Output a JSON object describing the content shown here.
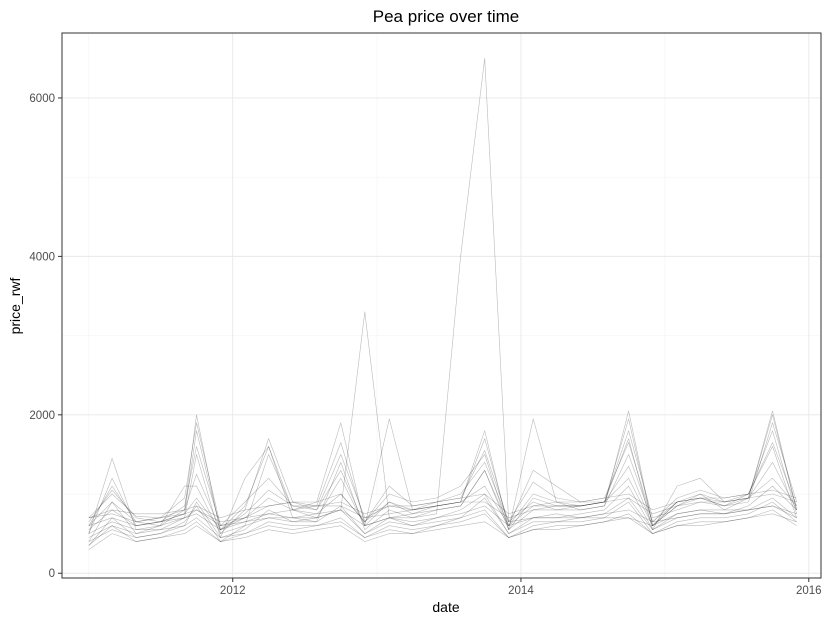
{
  "chart_data": {
    "type": "line",
    "title": "Pea price over time",
    "xlabel": "date",
    "ylabel": "price_rwf",
    "xlim": [
      "2010-10-25",
      "2016-02-01"
    ],
    "ylim": [
      -60,
      6820
    ],
    "x_ticks": [
      {
        "value": "2012-01-01",
        "label": "2012"
      },
      {
        "value": "2014-01-01",
        "label": "2014"
      },
      {
        "value": "2016-01-01",
        "label": "2016"
      }
    ],
    "y_ticks": [
      {
        "value": 0,
        "label": "0"
      },
      {
        "value": 2000,
        "label": "2000"
      },
      {
        "value": 4000,
        "label": "4000"
      },
      {
        "value": 6000,
        "label": "6000"
      }
    ],
    "x_minor": [
      "2011-01-01",
      "2013-01-01",
      "2015-01-01"
    ],
    "y_minor": [
      1000,
      3000,
      5000
    ],
    "grid": true,
    "line_color": "#000000",
    "dates": [
      "2011-01",
      "2011-03",
      "2011-05",
      "2011-07",
      "2011-09",
      "2011-10",
      "2011-12",
      "2012-02",
      "2012-04",
      "2012-06",
      "2012-08",
      "2012-10",
      "2012-12",
      "2013-02",
      "2013-04",
      "2013-06",
      "2013-08",
      "2013-10",
      "2013-12",
      "2014-02",
      "2014-04",
      "2014-06",
      "2014-08",
      "2014-10",
      "2014-12",
      "2015-02",
      "2015-04",
      "2015-06",
      "2015-08",
      "2015-10",
      "2015-12"
    ],
    "series": [
      {
        "values": [
          700,
          1000,
          720,
          700,
          950,
          1900,
          600,
          700,
          850,
          900,
          800,
          1500,
          700,
          850,
          800,
          900,
          1000,
          1400,
          650,
          900,
          800,
          850,
          900,
          1800,
          700,
          800,
          900,
          850,
          900,
          1900,
          900
        ]
      },
      {
        "values": [
          600,
          1100,
          650,
          600,
          800,
          2000,
          500,
          600,
          1500,
          800,
          700,
          1200,
          600,
          700,
          750,
          850,
          900,
          1700,
          600,
          1000,
          900,
          800,
          850,
          2050,
          600,
          850,
          1000,
          800,
          950,
          2050,
          800
        ]
      },
      {
        "values": [
          500,
          1450,
          550,
          550,
          700,
          1500,
          450,
          1200,
          1600,
          700,
          650,
          1400,
          550,
          800,
          700,
          800,
          850,
          1300,
          600,
          1300,
          1100,
          900,
          900,
          1700,
          550,
          1100,
          1200,
          900,
          1000,
          1800,
          750
        ]
      },
      {
        "values": [
          400,
          900,
          500,
          600,
          1100,
          1100,
          500,
          800,
          1700,
          900,
          900,
          1000,
          650,
          1000,
          900,
          950,
          1100,
          1500,
          550,
          800,
          800,
          800,
          850,
          1500,
          650,
          900,
          950,
          850,
          1000,
          1600,
          700
        ]
      },
      {
        "values": [
          350,
          700,
          450,
          500,
          650,
          850,
          400,
          600,
          700,
          650,
          700,
          800,
          500,
          700,
          600,
          700,
          800,
          1000,
          500,
          700,
          700,
          750,
          800,
          1100,
          550,
          750,
          800,
          750,
          850,
          1100,
          800
        ]
      },
      {
        "values": [
          450,
          600,
          500,
          550,
          600,
          700,
          450,
          500,
          600,
          550,
          600,
          700,
          450,
          600,
          550,
          600,
          700,
          800,
          450,
          600,
          650,
          650,
          700,
          900,
          500,
          650,
          700,
          700,
          750,
          900,
          650
        ]
      },
      {
        "values": [
          550,
          800,
          600,
          650,
          750,
          950,
          550,
          700,
          950,
          800,
          750,
          1000,
          650,
          900,
          800,
          850,
          900,
          1100,
          600,
          850,
          850,
          850,
          900,
          1200,
          600,
          900,
          950,
          900,
          950,
          1200,
          850
        ]
      },
      {
        "values": [
          300,
          500,
          400,
          450,
          550,
          650,
          400,
          500,
          650,
          600,
          600,
          650,
          450,
          550,
          500,
          600,
          650,
          750,
          450,
          550,
          600,
          600,
          650,
          750,
          500,
          600,
          650,
          650,
          700,
          800,
          600
        ]
      },
      {
        "values": [
          650,
          1050,
          700,
          650,
          850,
          1600,
          600,
          900,
          1200,
          850,
          850,
          1650,
          650,
          1100,
          850,
          900,
          950,
          1550,
          650,
          1150,
          950,
          900,
          950,
          1650,
          650,
          950,
          1050,
          950,
          1000,
          1650,
          850
        ]
      },
      {
        "values": [
          700,
          750,
          650,
          700,
          750,
          800,
          650,
          700,
          750,
          800,
          850,
          850,
          700,
          750,
          800,
          850,
          900,
          900,
          700,
          800,
          850,
          850,
          900,
          950,
          750,
          850,
          900,
          900,
          950,
          1000,
          900
        ]
      },
      {
        "values": [
          500,
          650,
          550,
          600,
          700,
          750,
          550,
          650,
          750,
          700,
          750,
          800,
          600,
          700,
          650,
          700,
          750,
          850,
          600,
          700,
          700,
          700,
          700,
          700,
          600,
          750,
          800,
          800,
          800,
          850,
          700
        ]
      },
      {
        "values": [
          400,
          550,
          450,
          500,
          600,
          900,
          450,
          550,
          800,
          650,
          650,
          850,
          500,
          650,
          600,
          650,
          700,
          950,
          500,
          650,
          650,
          700,
          750,
          950,
          550,
          700,
          750,
          750,
          800,
          950,
          700
        ]
      },
      {
        "values": [
          600,
          900,
          650,
          700,
          800,
          1250,
          550,
          750,
          1050,
          850,
          800,
          1300,
          600,
          900,
          750,
          800,
          850,
          1300,
          550,
          950,
          850,
          850,
          900,
          1350,
          600,
          850,
          950,
          850,
          950,
          1400,
          800
        ]
      },
      {
        "values": [
          350,
          600,
          400,
          450,
          500,
          600,
          400,
          450,
          550,
          500,
          550,
          600,
          400,
          500,
          500,
          550,
          600,
          650,
          450,
          550,
          550,
          600,
          650,
          700,
          500,
          600,
          600,
          650,
          700,
          750,
          650
        ]
      },
      {
        "values": [
          700,
          800,
          750,
          750,
          800,
          850,
          700,
          800,
          850,
          900,
          850,
          900,
          750,
          850,
          850,
          900,
          950,
          1000,
          750,
          850,
          900,
          900,
          950,
          1000,
          800,
          900,
          950,
          950,
          1000,
          1050,
          950
        ]
      },
      {
        "values": [
          500,
          1200,
          600,
          650,
          750,
          1800,
          550,
          850,
          1600,
          800,
          900,
          1900,
          600,
          1950,
          800,
          850,
          900,
          1800,
          550,
          1950,
          900,
          850,
          900,
          1950,
          600,
          900,
          1000,
          900,
          950,
          2000,
          800
        ]
      },
      {
        "values": [
          600,
          700,
          600,
          650,
          700,
          800,
          600,
          650,
          700,
          700,
          700,
          800,
          3300,
          700,
          700,
          750,
          4000,
          6500,
          650,
          700,
          750,
          700,
          750,
          800,
          650,
          700,
          750,
          750,
          800,
          850,
          750
        ]
      }
    ]
  }
}
